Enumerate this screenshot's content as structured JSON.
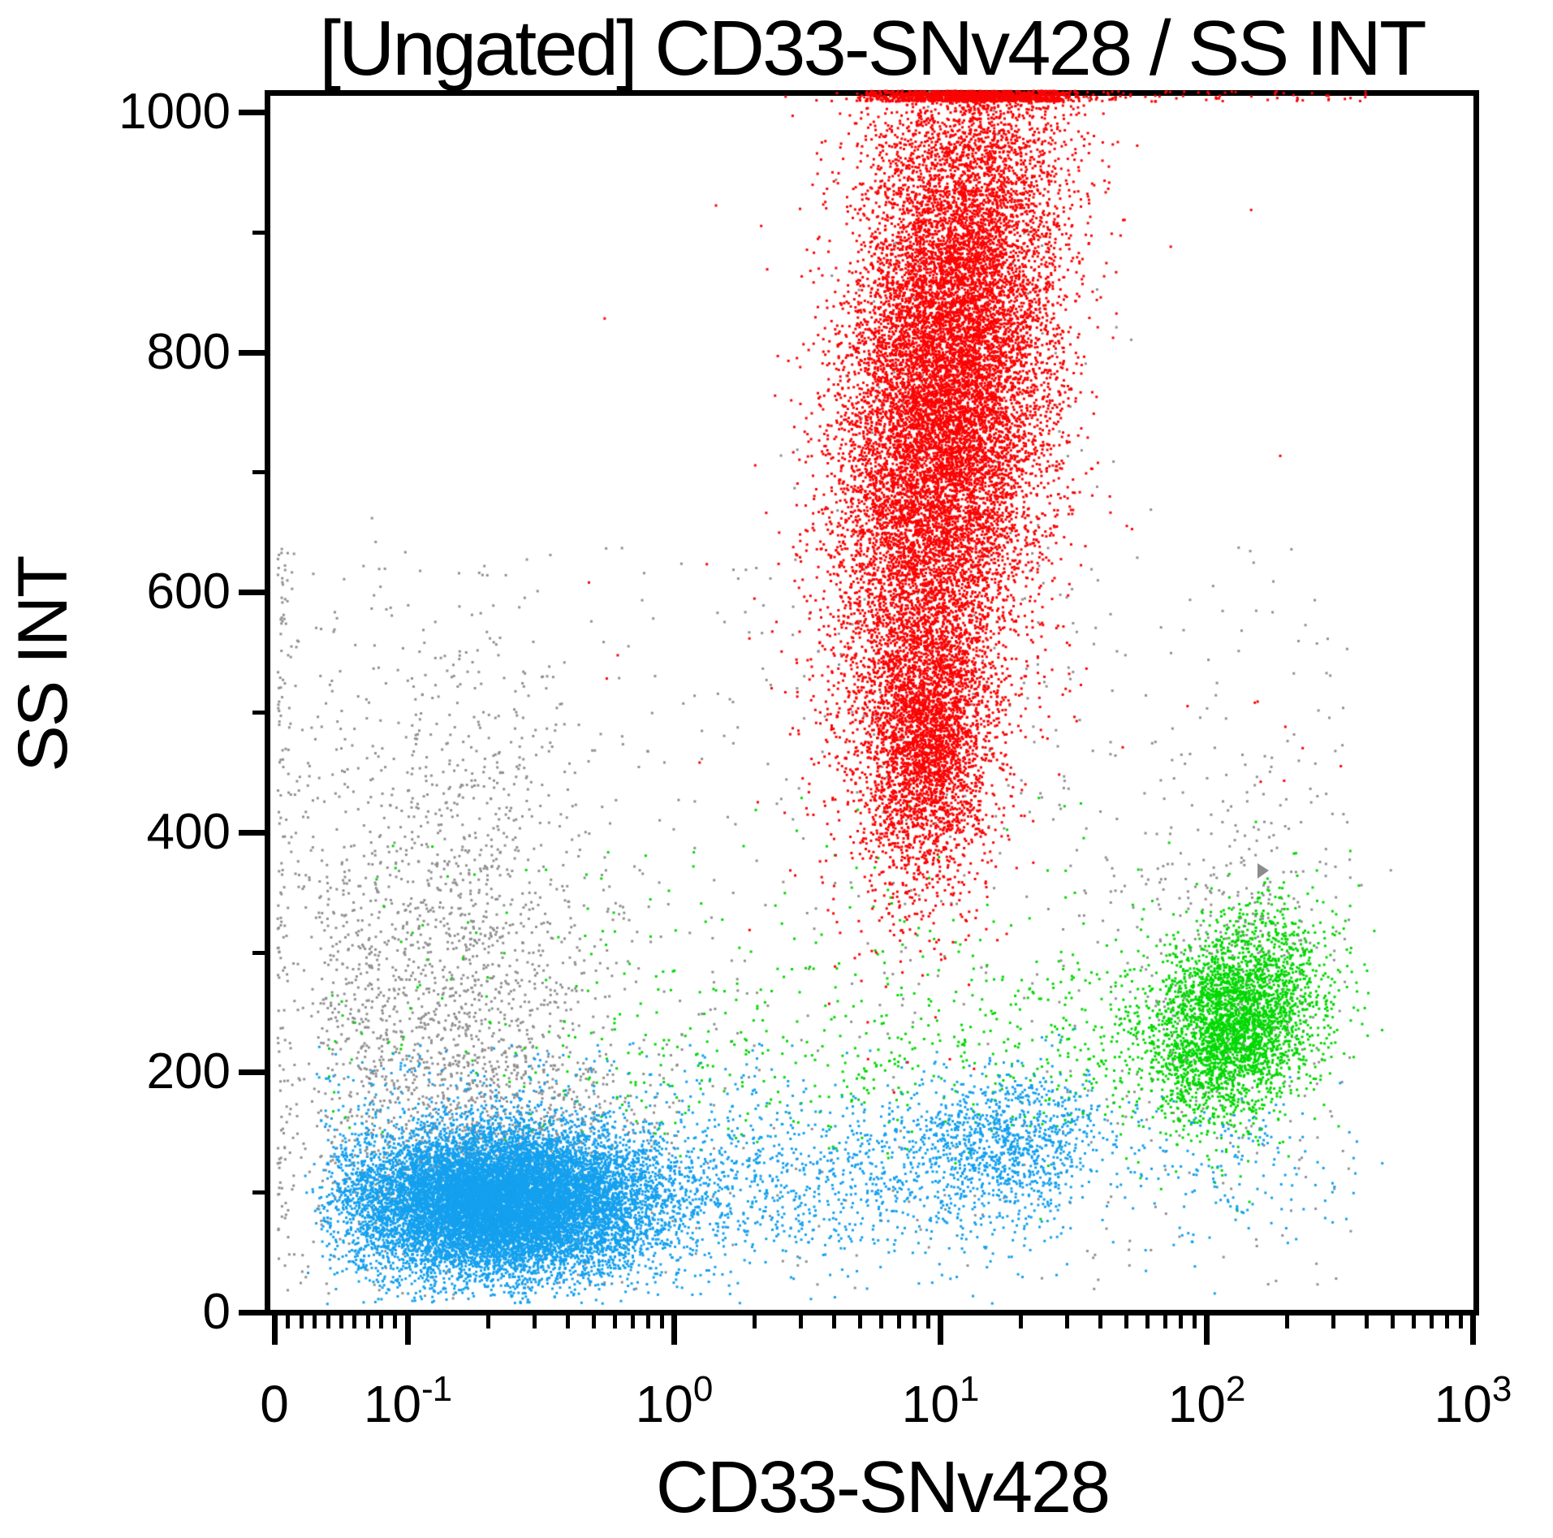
{
  "chart_data": {
    "type": "scatter",
    "title": "[Ungated] CD33-SNv428 / SS INT",
    "xlabel": "CD33-SNv428",
    "ylabel": "SS INT",
    "x_scale": "logicle",
    "xlim": [
      0,
      1000
    ],
    "ylim": [
      0,
      1023
    ],
    "grid": false,
    "legend": "none",
    "dot_size_px": 3,
    "colors": {
      "red": "#FA0404",
      "green": "#00D800",
      "blue": "#14A0EE",
      "gray": "#909090"
    },
    "x_ticks": {
      "major_values": [
        0,
        0.1,
        1,
        10,
        100,
        1000
      ],
      "minor_values": [
        0.01,
        0.02,
        0.03,
        0.04,
        0.05,
        0.06,
        0.07,
        0.08,
        0.09,
        0.2,
        0.3,
        0.4,
        0.5,
        0.6,
        0.7,
        0.8,
        0.9,
        2,
        3,
        4,
        5,
        6,
        7,
        8,
        9,
        20,
        30,
        40,
        50,
        60,
        70,
        80,
        90,
        200,
        300,
        400,
        500,
        600,
        700,
        800,
        900
      ]
    },
    "x_tick_labels": [
      {
        "base": "0",
        "sup": ""
      },
      {
        "base": "10",
        "sup": "-1"
      },
      {
        "base": "10",
        "sup": "0"
      },
      {
        "base": "10",
        "sup": "1"
      },
      {
        "base": "10",
        "sup": "2"
      },
      {
        "base": "10",
        "sup": "3"
      }
    ],
    "y_ticks": {
      "major_values": [
        0,
        200,
        400,
        600,
        800,
        1000
      ],
      "labels": [
        "0",
        "200",
        "400",
        "600",
        "800",
        "1000"
      ],
      "minor_values": [
        100,
        300,
        500,
        700,
        900
      ]
    },
    "populations": [
      {
        "name": "gray-debris-cluster",
        "color": "gray",
        "kind": "gauss",
        "mu_log": -0.85,
        "sigma_log": 0.3,
        "cy": 255,
        "sy": 90,
        "count": 1500
      },
      {
        "name": "gray-up-tail",
        "color": "gray",
        "kind": "gauss",
        "mu_log": -0.82,
        "sigma_log": 0.26,
        "cy": 450,
        "sy": 80,
        "count": 260
      },
      {
        "name": "gray-scatter",
        "color": "gray",
        "kind": "uniform",
        "x_log_min": -2.6,
        "x_log_max": 2.55,
        "y_min": 18,
        "y_max": 640,
        "count": 950
      },
      {
        "name": "gray-in-red-plume",
        "color": "gray",
        "kind": "gauss",
        "mu_log": 1.05,
        "sigma_log": 0.3,
        "cy": 700,
        "sy": 180,
        "count": 160
      },
      {
        "name": "gray-in-green-cluster",
        "color": "gray",
        "kind": "gauss",
        "mu_log": 2.1,
        "sigma_log": 0.2,
        "cy": 260,
        "sy": 60,
        "count": 260
      },
      {
        "name": "gray-right-upper",
        "color": "gray",
        "kind": "gauss",
        "mu_log": 2.12,
        "sigma_log": 0.22,
        "cy": 385,
        "sy": 55,
        "count": 110
      },
      {
        "name": "gray-blue-fringe",
        "color": "gray",
        "kind": "gauss",
        "mu_log": -0.6,
        "sigma_log": 0.3,
        "cy": 150,
        "sy": 35,
        "count": 500
      },
      {
        "name": "monocytes-green",
        "color": "green",
        "kind": "gauss",
        "mu_log": 2.11,
        "sigma_log": 0.155,
        "cy": 243,
        "sy": 42,
        "corr": 0.0009,
        "count": 3300
      },
      {
        "name": "green-trail",
        "color": "green",
        "kind": "trail",
        "x_log_min": -0.8,
        "x_log_max": 1.95,
        "power": 0.55,
        "cy_base": 205,
        "cy_slope": 18,
        "sy": 45,
        "count": 620
      },
      {
        "name": "green-scatter-left",
        "color": "green",
        "kind": "uniform",
        "x_log_min": -1.4,
        "x_log_max": 0.2,
        "y_min": 150,
        "y_max": 390,
        "count": 90
      },
      {
        "name": "green-strays",
        "color": "green",
        "kind": "uniform",
        "x_log_min": 0.2,
        "x_log_max": 1.6,
        "y_min": 280,
        "y_max": 430,
        "count": 40
      },
      {
        "name": "lymphocytes-blue",
        "color": "blue",
        "kind": "gauss",
        "mu_log": -0.66,
        "sigma_log": 0.27,
        "cy": 92,
        "sy": 30,
        "count": 14000
      },
      {
        "name": "blue-right-tail",
        "color": "blue",
        "kind": "trail",
        "x_log_min": -0.3,
        "x_log_max": 1.5,
        "power": 1.7,
        "cy_base": 100,
        "cy_slope": 8,
        "sy": 34,
        "count": 1600
      },
      {
        "name": "blue-cluster-2",
        "color": "blue",
        "kind": "gauss",
        "mu_log": 1.23,
        "sigma_log": 0.2,
        "cy": 147,
        "sy": 27,
        "count": 900
      },
      {
        "name": "blue-under-green",
        "color": "blue",
        "kind": "gauss",
        "mu_log": 2.08,
        "sigma_log": 0.22,
        "cy": 115,
        "sy": 38,
        "count": 170
      },
      {
        "name": "blue-fringe",
        "color": "blue",
        "kind": "uniform",
        "x_log_min": -1.5,
        "x_log_max": 0.5,
        "y_min": 155,
        "y_max": 225,
        "count": 150
      },
      {
        "name": "granulocytes-red",
        "color": "red",
        "kind": "gauss",
        "mu_log": 1.03,
        "sigma_log": 0.19,
        "cy": 770,
        "sy": 160,
        "corr": 0.0004,
        "count": 16500
      },
      {
        "name": "red-neck",
        "color": "red",
        "kind": "gauss",
        "mu_log": 0.95,
        "sigma_log": 0.115,
        "cy": 470,
        "sy": 55,
        "count": 2600
      },
      {
        "name": "red-top-clipped-dense",
        "color": "red",
        "kind": "topline",
        "x_log_min": 0.72,
        "x_log_max": 1.48,
        "count": 420
      },
      {
        "name": "red-top-clipped-sparse",
        "color": "red",
        "kind": "topline",
        "x_log_min": 1.48,
        "x_log_max": 2.6,
        "count": 55
      },
      {
        "name": "red-outliers",
        "color": "red",
        "kind": "uniform",
        "x_log_min": -0.3,
        "x_log_max": 2.4,
        "y_min": 430,
        "y_max": 1010,
        "count": 26
      },
      {
        "name": "red-outliers-explicit",
        "color": "red",
        "kind": "points",
        "points": [
          [
            0.55,
            828
          ],
          [
            0.48,
            608
          ],
          [
            0.56,
            528
          ],
          [
            1.25,
            458
          ],
          [
            28,
            448
          ],
          [
            85,
            505
          ],
          [
            160,
            442
          ],
          [
            230,
            470
          ],
          [
            320,
            455
          ],
          [
            55,
            972
          ]
        ]
      }
    ]
  }
}
